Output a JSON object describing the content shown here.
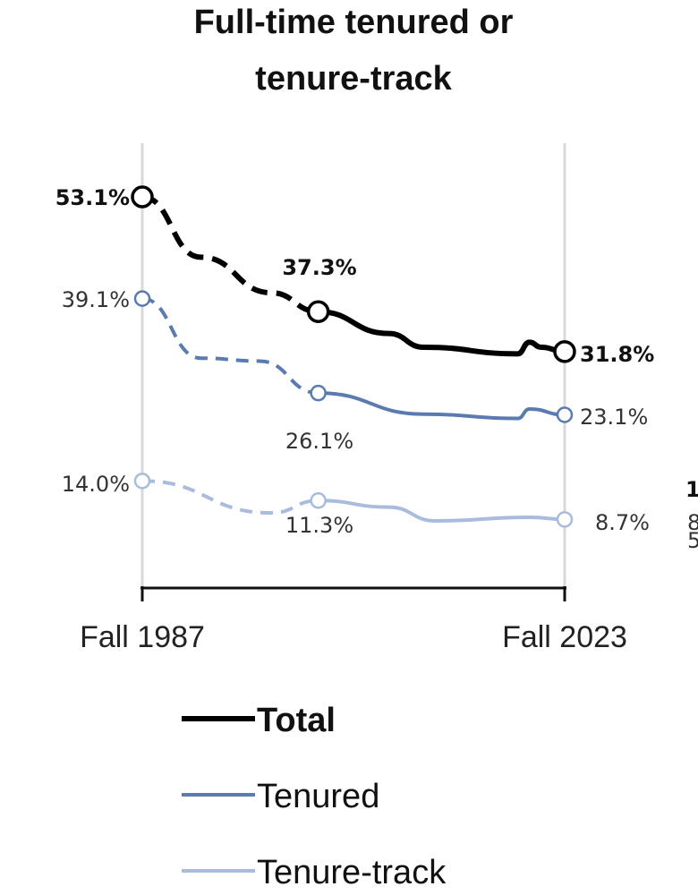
{
  "chart_data": {
    "type": "line",
    "title": [
      "Full-time tenured or",
      "tenure-track"
    ],
    "xlabel": "",
    "ylabel": "",
    "x_tick_labels": [
      "Fall 1987",
      "Fall 2023"
    ],
    "xlim": [
      1987,
      2023
    ],
    "ylim": [
      0,
      53.1
    ],
    "grid": false,
    "legend_position": "bottom",
    "dashed_until": 2002,
    "series": [
      {
        "name": "Total",
        "color": "#000000",
        "bold": true,
        "x": [
          1987,
          1992,
          1998,
          2002,
          2008,
          2011,
          2019,
          2020,
          2021,
          2023
        ],
        "values": [
          53.1,
          44.8,
          39.9,
          37.3,
          34.3,
          32.4,
          31.5,
          33.1,
          32.4,
          31.8
        ],
        "labels": {
          "start": "53.1%",
          "mid": "37.3%",
          "end": "31.8%"
        }
      },
      {
        "name": "Tenured",
        "color": "#5b7bb0",
        "bold": false,
        "x": [
          1987,
          1992,
          1997,
          2002,
          2011,
          2019,
          2020,
          2023
        ],
        "values": [
          39.1,
          30.9,
          30.5,
          26.1,
          23.2,
          22.6,
          23.9,
          23.1
        ],
        "labels": {
          "start": "39.1%",
          "mid": "26.1%",
          "end": "23.1%"
        }
      },
      {
        "name": "Tenure-track",
        "color": "#a9bcdd",
        "bold": false,
        "x": [
          1987,
          1998,
          2002,
          2008,
          2012,
          2020,
          2023
        ],
        "values": [
          14.0,
          9.6,
          11.3,
          10.4,
          8.5,
          9.0,
          8.7
        ],
        "labels": {
          "start": "14.0%",
          "mid": "11.3%",
          "end": "8.7%"
        }
      }
    ],
    "clipped_neighbor_labels": [
      "1",
      "8",
      "5"
    ]
  }
}
